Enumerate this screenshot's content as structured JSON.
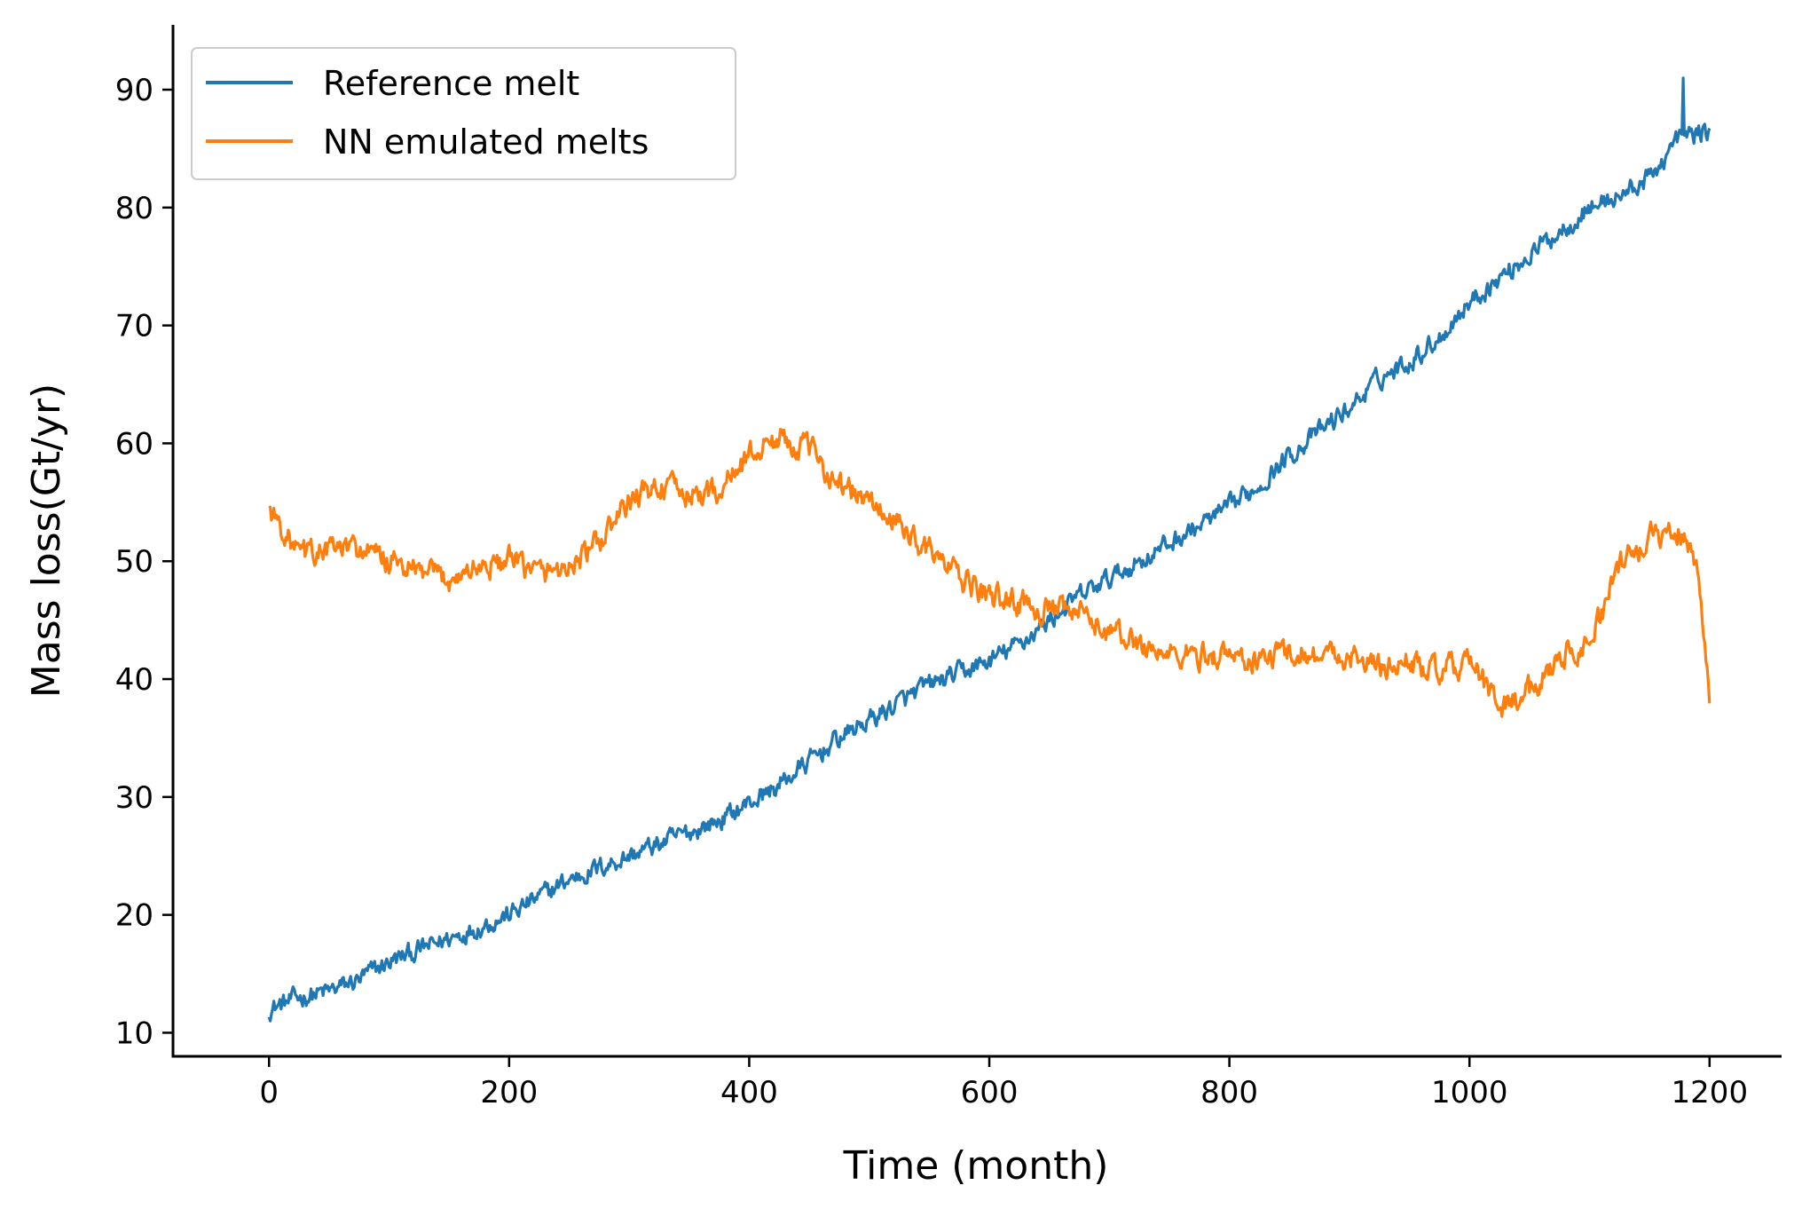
{
  "chart_data": {
    "type": "line",
    "title": "",
    "xlabel": "Time (month)",
    "ylabel": "Mass loss(Gt/yr)",
    "xlim": [
      -80,
      1260
    ],
    "ylim": [
      8,
      95.5
    ],
    "xticks": [
      0,
      200,
      400,
      600,
      800,
      1000,
      1200
    ],
    "yticks": [
      10,
      20,
      30,
      40,
      50,
      60,
      70,
      80,
      90
    ],
    "grid": false,
    "legend_position": "top-left",
    "series": [
      {
        "name": "Reference melt",
        "color": "#1f77b4",
        "x": [
          0,
          25,
          50,
          75,
          100,
          125,
          150,
          175,
          200,
          225,
          250,
          275,
          300,
          325,
          350,
          375,
          400,
          425,
          450,
          475,
          500,
          525,
          550,
          575,
          600,
          625,
          650,
          675,
          700,
          725,
          750,
          775,
          800,
          825,
          850,
          875,
          900,
          925,
          950,
          975,
          1000,
          1025,
          1050,
          1075,
          1100,
          1125,
          1150,
          1175,
          1200
        ],
        "values": [
          12.0,
          13.0,
          13.5,
          14.5,
          16.0,
          17.0,
          18.0,
          19.0,
          20.0,
          21.5,
          23.0,
          24.0,
          25.0,
          26.0,
          27.0,
          28.0,
          29.5,
          31.0,
          33.0,
          35.0,
          36.5,
          38.0,
          39.5,
          40.5,
          41.5,
          43.0,
          45.0,
          47.0,
          48.5,
          50.0,
          51.5,
          53.0,
          54.5,
          56.5,
          59.0,
          61.0,
          63.0,
          65.5,
          67.0,
          69.0,
          72.0,
          74.0,
          76.0,
          78.0,
          80.0,
          81.0,
          82.5,
          86.0,
          86.5
        ],
        "peak": {
          "x": 1178,
          "y": 91.0
        }
      },
      {
        "name": "NN emulated melts",
        "color": "#ff7f0e",
        "x": [
          0,
          25,
          50,
          75,
          100,
          125,
          150,
          175,
          200,
          225,
          250,
          275,
          300,
          325,
          350,
          375,
          400,
          425,
          450,
          475,
          500,
          525,
          550,
          575,
          600,
          625,
          650,
          675,
          700,
          725,
          750,
          775,
          800,
          825,
          850,
          875,
          900,
          925,
          950,
          975,
          1000,
          1025,
          1050,
          1075,
          1100,
          1125,
          1150,
          1175,
          1190,
          1200
        ],
        "values": [
          54.5,
          50.5,
          51.0,
          51.0,
          50.0,
          49.0,
          48.5,
          49.5,
          50.0,
          49.0,
          49.5,
          51.5,
          55.0,
          56.5,
          55.5,
          56.0,
          59.0,
          60.5,
          59.5,
          56.5,
          55.0,
          53.0,
          51.0,
          48.5,
          47.0,
          46.5,
          45.8,
          45.5,
          44.0,
          43.0,
          42.0,
          42.0,
          42.0,
          41.5,
          42.5,
          42.0,
          42.0,
          41.0,
          41.5,
          40.5,
          41.5,
          37.5,
          39.0,
          42.0,
          43.0,
          49.5,
          52.0,
          52.5,
          50.0,
          38.0
        ]
      }
    ]
  }
}
